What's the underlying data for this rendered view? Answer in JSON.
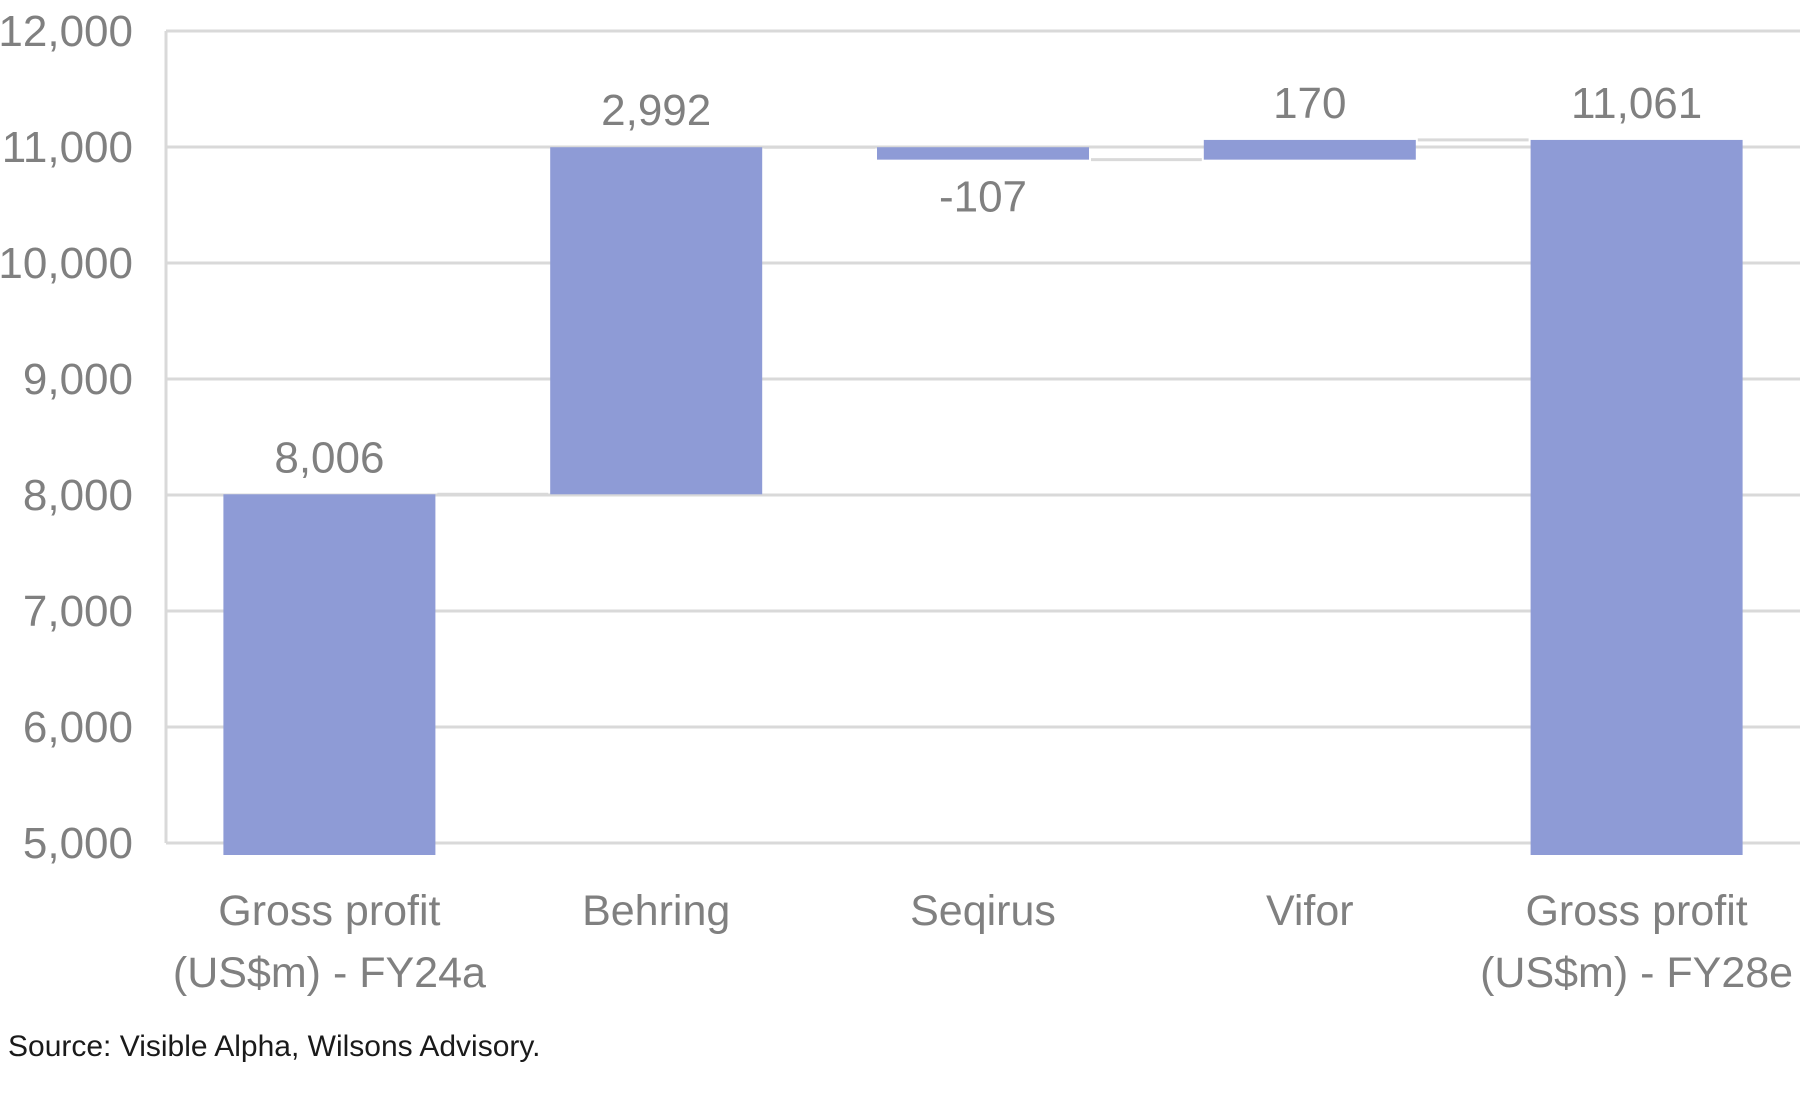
{
  "chart_data": {
    "type": "bar",
    "subtype": "waterfall",
    "categories": [
      "Gross profit\n(US$m) - FY24a",
      "Behring",
      "Seqirus",
      "Vifor",
      "Gross profit\n(US$m) - FY28e"
    ],
    "values": [
      8006,
      2992,
      -107,
      170,
      11061
    ],
    "kinds": [
      "total",
      "delta",
      "delta",
      "delta",
      "total"
    ],
    "data_labels": [
      "8,006",
      "2,992",
      "-107",
      "170",
      "11,061"
    ],
    "y_ticks": [
      "5,000",
      "6,000",
      "7,000",
      "8,000",
      "9,000",
      "10,000",
      "11,000",
      "12,000"
    ],
    "ylim": [
      5000,
      12000
    ],
    "grid": true,
    "legend": "none",
    "title": "",
    "xlabel": "",
    "ylabel": "",
    "bar_color": "#8e9bd6",
    "grid_color": "#d9d9d9"
  },
  "source_note": "Source: Visible Alpha, Wilsons Advisory."
}
